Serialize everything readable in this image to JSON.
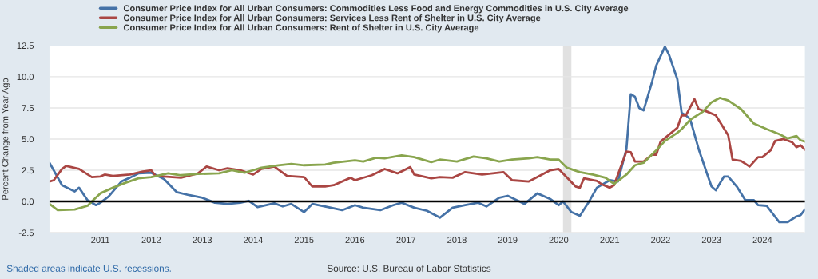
{
  "chart_data": {
    "type": "line",
    "ylabel": "Percent Change from Year Ago",
    "xlim": [
      "2010-01",
      "2024-11"
    ],
    "ylim": [
      -2.5,
      12.5
    ],
    "xticks": [
      "2011",
      "2012",
      "2013",
      "2014",
      "2015",
      "2016",
      "2017",
      "2018",
      "2019",
      "2020",
      "2021",
      "2022",
      "2023",
      "2024"
    ],
    "yticks": [
      -2.5,
      {
        "value": 0,
        "label": "0.0"
      },
      2.5,
      {
        "value": 5,
        "label": "5.0"
      },
      7.5,
      {
        "value": 10,
        "label": "10.0"
      },
      12.5
    ],
    "grid": "y",
    "legend": "top left",
    "line_style": "solid",
    "marker": "none",
    "ref_lines": [
      {
        "axis": "y",
        "value": 0,
        "color": "#000000"
      }
    ],
    "bands": [
      {
        "axis": "x",
        "from": "2020-02",
        "to": "2020-04",
        "color": "#e1e1e1"
      }
    ],
    "annotations": [
      "Shaded areas indicate U.S. recessions.",
      "Source: U.S. Bureau of Labor Statistics"
    ],
    "series": [
      {
        "name": "Consumer Price Index for All Urban Consumers: Commodities Less Food and Energy Commodities in U.S. City Average",
        "color": "#4572a7",
        "x": [
          "2010-01",
          "2010-04",
          "2010-07",
          "2010-08",
          "2010-10",
          "2010-12",
          "2011-01",
          "2011-03",
          "2011-06",
          "2011-08",
          "2011-10",
          "2012-01",
          "2012-04",
          "2012-07",
          "2012-10",
          "2013-01",
          "2013-04",
          "2013-07",
          "2013-10",
          "2013-12",
          "2014-02",
          "2014-06",
          "2014-08",
          "2014-10",
          "2015-01",
          "2015-03",
          "2015-06",
          "2015-10",
          "2016-01",
          "2016-03",
          "2016-07",
          "2016-10",
          "2016-12",
          "2017-03",
          "2017-06",
          "2017-09",
          "2017-12",
          "2018-03",
          "2018-06",
          "2018-08",
          "2018-11",
          "2019-01",
          "2019-05",
          "2019-08",
          "2019-11",
          "2020-01",
          "2020-02",
          "2020-04",
          "2020-06",
          "2020-08",
          "2020-10",
          "2021-01",
          "2021-03",
          "2021-05",
          "2021-06",
          "2021-07",
          "2021-08",
          "2021-09",
          "2021-11",
          "2021-12",
          "2022-02",
          "2022-03",
          "2022-05",
          "2022-06",
          "2022-07",
          "2022-08",
          "2022-10",
          "2022-12",
          "2023-01",
          "2023-02",
          "2023-04",
          "2023-05",
          "2023-07",
          "2023-09",
          "2023-11",
          "2023-12",
          "2024-02",
          "2024-05",
          "2024-07",
          "2024-09",
          "2024-10",
          "2024-11"
        ],
        "values": [
          3.1,
          1.3,
          0.8,
          1.1,
          0.1,
          -0.3,
          -0.1,
          0.4,
          1.6,
          1.9,
          2.25,
          2.3,
          1.8,
          0.75,
          0.5,
          0.3,
          -0.1,
          -0.2,
          -0.1,
          0.05,
          -0.45,
          -0.15,
          -0.4,
          -0.2,
          -0.85,
          -0.2,
          -0.4,
          -0.7,
          -0.3,
          -0.5,
          -0.7,
          -0.3,
          -0.1,
          -0.5,
          -0.75,
          -1.3,
          -0.5,
          -0.3,
          -0.1,
          -0.4,
          0.3,
          0.45,
          -0.2,
          0.65,
          0.2,
          -0.3,
          0,
          -0.85,
          -1.15,
          -0.1,
          1.1,
          1.7,
          1.6,
          4.2,
          8.6,
          8.4,
          7.5,
          7.3,
          9.6,
          10.9,
          12.4,
          11.8,
          9.8,
          7.1,
          6.9,
          6.6,
          4.2,
          2.2,
          1.2,
          0.9,
          2.0,
          2.0,
          1.2,
          0.1,
          0.1,
          -0.3,
          -0.35,
          -1.65,
          -1.65,
          -1.2,
          -1.1,
          -0.65
        ]
      },
      {
        "name": "Consumer Price Index for All Urban Consumers: Services Less Rent of Shelter in U.S. City Average",
        "color": "#aa4643",
        "x": [
          "2010-01",
          "2010-02",
          "2010-04",
          "2010-05",
          "2010-08",
          "2010-11",
          "2011-01",
          "2011-02",
          "2011-04",
          "2011-08",
          "2011-11",
          "2012-01",
          "2012-02",
          "2012-06",
          "2012-08",
          "2012-12",
          "2013-02",
          "2013-05",
          "2013-07",
          "2013-10",
          "2014-01",
          "2014-03",
          "2014-06",
          "2014-09",
          "2015-01",
          "2015-03",
          "2015-06",
          "2015-08",
          "2015-12",
          "2016-01",
          "2016-05",
          "2016-08",
          "2016-11",
          "2017-02",
          "2017-03",
          "2017-07",
          "2017-09",
          "2017-12",
          "2018-03",
          "2018-07",
          "2018-12",
          "2019-02",
          "2019-06",
          "2019-08",
          "2019-11",
          "2020-01",
          "2020-02",
          "2020-05",
          "2020-06",
          "2020-07",
          "2020-10",
          "2020-11",
          "2021-01",
          "2021-02",
          "2021-05",
          "2021-06",
          "2021-07",
          "2021-09",
          "2021-11",
          "2021-12",
          "2022-01",
          "2022-05",
          "2022-06",
          "2022-07",
          "2022-09",
          "2022-10",
          "2022-12",
          "2023-02",
          "2023-05",
          "2023-06",
          "2023-08",
          "2023-10",
          "2023-12",
          "2024-01",
          "2024-03",
          "2024-04",
          "2024-06",
          "2024-08",
          "2024-09",
          "2024-10",
          "2024-11"
        ],
        "values": [
          1.6,
          1.7,
          2.6,
          2.85,
          2.6,
          1.95,
          2.0,
          2.15,
          2.05,
          2.15,
          2.4,
          2.5,
          2.05,
          1.95,
          1.9,
          2.25,
          2.8,
          2.5,
          2.65,
          2.5,
          2.15,
          2.6,
          2.8,
          2.05,
          1.95,
          1.2,
          1.2,
          1.3,
          1.9,
          1.7,
          2.1,
          2.6,
          2.25,
          2.75,
          2.15,
          1.85,
          1.95,
          1.9,
          2.35,
          2.15,
          2.35,
          1.7,
          1.6,
          1.95,
          2.5,
          2.6,
          2.25,
          1.2,
          1.1,
          1.85,
          1.65,
          1.4,
          1.1,
          1.3,
          4.0,
          3.95,
          3.2,
          3.2,
          3.75,
          3.75,
          4.8,
          5.9,
          6.9,
          6.9,
          8.2,
          7.4,
          7.2,
          6.9,
          5.3,
          3.35,
          3.25,
          2.8,
          3.55,
          3.55,
          4.1,
          4.85,
          5.0,
          4.75,
          4.35,
          4.5,
          4.15
        ]
      },
      {
        "name": "Consumer Price Index for All Urban Consumers: Rent of Shelter in U.S. City Average",
        "color": "#89a54e",
        "x": [
          "2010-01",
          "2010-03",
          "2010-07",
          "2010-10",
          "2010-11",
          "2011-01",
          "2011-04",
          "2011-07",
          "2011-10",
          "2012-01",
          "2012-05",
          "2012-08",
          "2012-12",
          "2013-05",
          "2013-08",
          "2013-11",
          "2014-01",
          "2014-03",
          "2014-07",
          "2014-10",
          "2015-01",
          "2015-06",
          "2015-08",
          "2016-01",
          "2016-03",
          "2016-06",
          "2016-08",
          "2016-12",
          "2017-03",
          "2017-07",
          "2017-09",
          "2018-01",
          "2018-05",
          "2018-08",
          "2018-11",
          "2019-02",
          "2019-06",
          "2019-08",
          "2019-11",
          "2020-01",
          "2020-03",
          "2020-06",
          "2020-09",
          "2020-12",
          "2021-02",
          "2021-05",
          "2021-07",
          "2021-09",
          "2021-12",
          "2022-02",
          "2022-05",
          "2022-06",
          "2022-08",
          "2022-11",
          "2023-01",
          "2023-03",
          "2023-05",
          "2023-08",
          "2023-11",
          "2024-02",
          "2024-05",
          "2024-07",
          "2024-09",
          "2024-10",
          "2024-11"
        ],
        "values": [
          -0.2,
          -0.7,
          -0.65,
          -0.35,
          0,
          0.65,
          1.1,
          1.5,
          1.85,
          1.95,
          2.25,
          2.1,
          2.2,
          2.25,
          2.5,
          2.3,
          2.5,
          2.7,
          2.9,
          3.0,
          2.9,
          2.95,
          3.1,
          3.3,
          3.2,
          3.5,
          3.45,
          3.7,
          3.55,
          3.15,
          3.35,
          3.2,
          3.6,
          3.45,
          3.2,
          3.35,
          3.45,
          3.55,
          3.35,
          3.35,
          2.7,
          2.35,
          2.15,
          1.9,
          1.4,
          2.15,
          2.9,
          3.1,
          4.1,
          4.85,
          5.5,
          5.8,
          6.55,
          7.2,
          7.95,
          8.3,
          8.1,
          7.4,
          6.25,
          5.8,
          5.4,
          5.05,
          5.25,
          4.9,
          4.8
        ]
      }
    ]
  }
}
